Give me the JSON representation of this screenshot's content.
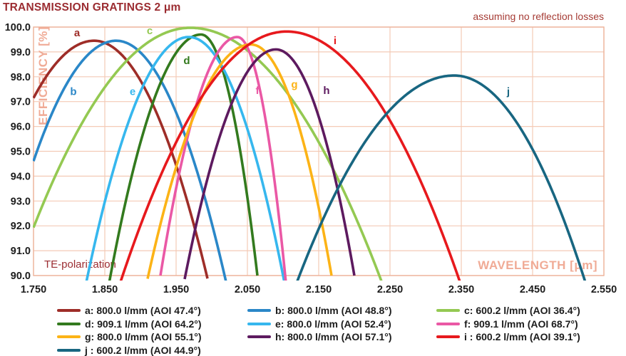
{
  "title": "TRANSMISSION GRATINGS 2 μm",
  "annotation_top_right": "assuming no reflection losses",
  "plot_note": "TE-polarization",
  "colors": {
    "title_text": "#9b2c31",
    "subtitle_text": "#a63c35",
    "axis_inner_label": "#f0ab96",
    "grid_line": "#f4cab6",
    "plot_border": "#edb49c",
    "tick_text": "#1c1c1c"
  },
  "x_axis": {
    "label": "WAVELENGTH [μm]",
    "ticks": [
      "1.750",
      "1.850",
      "1.950",
      "2.050",
      "2.150",
      "2.250",
      "2.350",
      "2.450",
      "2.550"
    ]
  },
  "y_axis": {
    "label": "EFFICIENCY [%]",
    "ticks": [
      "100.0",
      "99.0",
      "98.0",
      "97.0",
      "96.0",
      "95.0",
      "94.0",
      "93.0",
      "92.0",
      "91.0",
      "90.0"
    ]
  },
  "chart_data": {
    "type": "line",
    "title": "TRANSMISSION GRATINGS 2 μm",
    "xlabel": "WAVELENGTH [μm]",
    "ylabel": "EFFICIENCY [%]",
    "xlim": [
      1.75,
      2.55
    ],
    "ylim": [
      90,
      100
    ],
    "grid": true,
    "legend_position": "bottom",
    "curve_model": "asymmetric parabola: y = peak_y - (peak_y - 90) * ((x - peak_x) / halfwidth)^2, halfwidth = peak_x - x_left_90 for x < peak_x else x_right_90 - peak_x",
    "series": [
      {
        "id": "a",
        "legend": "a: 800.0 l/mm (AOI 47.4°)",
        "lines_per_mm": 800.0,
        "aoi_deg": 47.4,
        "color": "#9e2d28",
        "peak_x": 1.835,
        "peak_y": 99.45,
        "x_left_90": 1.663,
        "x_right_90": 1.993,
        "y_at_x_min": 97.15,
        "label_pos": {
          "x": 1.811,
          "y": 99.77
        }
      },
      {
        "id": "b",
        "legend": "b: 800.0 l/mm (AOI 48.8°)",
        "lines_per_mm": 800.0,
        "aoi_deg": 48.8,
        "color": "#2a87c8",
        "peak_x": 1.866,
        "peak_y": 99.45,
        "x_left_90": 1.704,
        "x_right_90": 2.018,
        "y_at_x_min": 94.7,
        "label_pos": {
          "x": 1.806,
          "y": 97.4
        }
      },
      {
        "id": "c",
        "legend": "c: 600.2 l/mm (AOI 36.4°)",
        "lines_per_mm": 600.2,
        "aoi_deg": 36.4,
        "color": "#94c952",
        "peak_x": 1.97,
        "peak_y": 99.97,
        "x_left_90": 1.725,
        "x_right_90": 2.235,
        "y_at_x_min": 92.0,
        "label_pos": {
          "x": 1.913,
          "y": 99.85
        }
      },
      {
        "id": "d",
        "legend": "d: 909.1 l/mm (AOI 64.2°)",
        "lines_per_mm": 909.1,
        "aoi_deg": 64.2,
        "color": "#337a1e",
        "peak_x": 1.985,
        "peak_y": 99.7,
        "x_left_90": 1.858,
        "x_right_90": 2.064,
        "label_pos": {
          "x": 1.965,
          "y": 98.65
        }
      },
      {
        "id": "e",
        "legend": "e: 800.0 l/mm (AOI 52.4°)",
        "lines_per_mm": 800.0,
        "aoi_deg": 52.4,
        "color": "#36b7ee",
        "peak_x": 1.968,
        "peak_y": 99.6,
        "x_left_90": 1.826,
        "x_right_90": 2.1,
        "label_pos": {
          "x": 1.889,
          "y": 97.4
        }
      },
      {
        "id": "f",
        "legend": "f: 909.1 l/mm (AOI 68.7°)",
        "lines_per_mm": 909.1,
        "aoi_deg": 68.7,
        "color": "#ea58a5",
        "peak_x": 2.036,
        "peak_y": 99.6,
        "x_left_90": 1.928,
        "x_right_90": 2.103,
        "label_pos": {
          "x": 2.064,
          "y": 97.45
        }
      },
      {
        "id": "g",
        "legend": "g: 800.0 l/mm (AOI 55.1°)",
        "lines_per_mm": 800.0,
        "aoi_deg": 55.1,
        "color": "#fcb316",
        "peak_x": 2.055,
        "peak_y": 99.3,
        "x_left_90": 1.911,
        "x_right_90": 2.168,
        "label_pos": {
          "x": 2.116,
          "y": 97.7
        }
      },
      {
        "id": "h",
        "legend": "h: 800.0 l/mm (AOI 57.1°)",
        "lines_per_mm": 800.0,
        "aoi_deg": 57.1,
        "color": "#5d1a5f",
        "peak_x": 2.09,
        "peak_y": 99.1,
        "x_left_90": 1.963,
        "x_right_90": 2.2,
        "label_pos": {
          "x": 2.161,
          "y": 97.45
        }
      },
      {
        "id": "i",
        "legend": "i : 600.2 l/mm (AOI 39.1°)",
        "lines_per_mm": 600.2,
        "aoi_deg": 39.1,
        "color": "#e7191d",
        "peak_x": 2.105,
        "peak_y": 99.82,
        "x_left_90": 1.875,
        "x_right_90": 2.345,
        "label_pos": {
          "x": 2.173,
          "y": 99.45
        }
      },
      {
        "id": "j",
        "legend": "j : 600.2 l/mm (AOI 44.9°)",
        "lines_per_mm": 600.2,
        "aoi_deg": 44.9,
        "color": "#186681",
        "peak_x": 2.34,
        "peak_y": 98.05,
        "x_left_90": 2.123,
        "x_right_90": 2.521,
        "label_pos": {
          "x": 2.416,
          "y": 97.4
        }
      }
    ]
  }
}
